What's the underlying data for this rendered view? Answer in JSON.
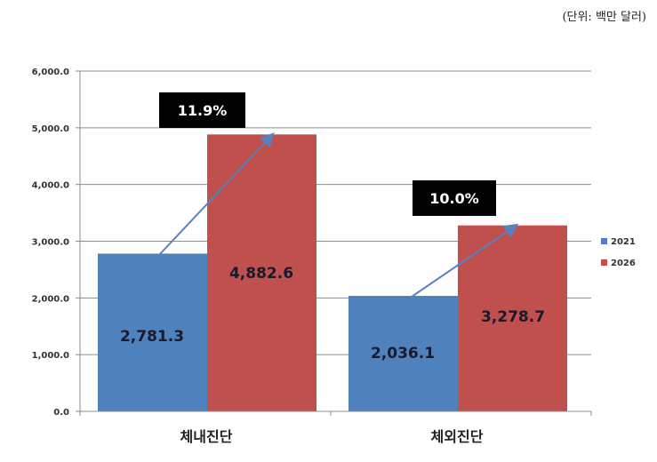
{
  "unit_label": "(단위: 백만 달러)",
  "chart_data": {
    "type": "bar",
    "title": "",
    "unit": "백만 달러",
    "categories": [
      "체내진단",
      "체외진단"
    ],
    "series": [
      {
        "name": "2021",
        "color": "#4f81bd",
        "values": [
          2781.3,
          2036.1
        ],
        "labels": [
          "2,781.3",
          "2,036.1"
        ]
      },
      {
        "name": "2026",
        "color": "#c0504d",
        "values": [
          4882.6,
          3278.7
        ],
        "labels": [
          "4,882.6",
          "3,278.7"
        ]
      }
    ],
    "growth_annotations": [
      {
        "category": "체내진단",
        "label": "11.9%"
      },
      {
        "category": "체외진단",
        "label": "10.0%"
      }
    ],
    "xlabel": "",
    "ylabel": "",
    "ylim": [
      0,
      6000
    ],
    "yticks": [
      "0.0",
      "1,000.0",
      "2,000.0",
      "3,000.0",
      "4,000.0",
      "5,000.0",
      "6,000.0"
    ],
    "grid": true,
    "legend_position": "right",
    "arrow_color": "#5b7fbf"
  }
}
